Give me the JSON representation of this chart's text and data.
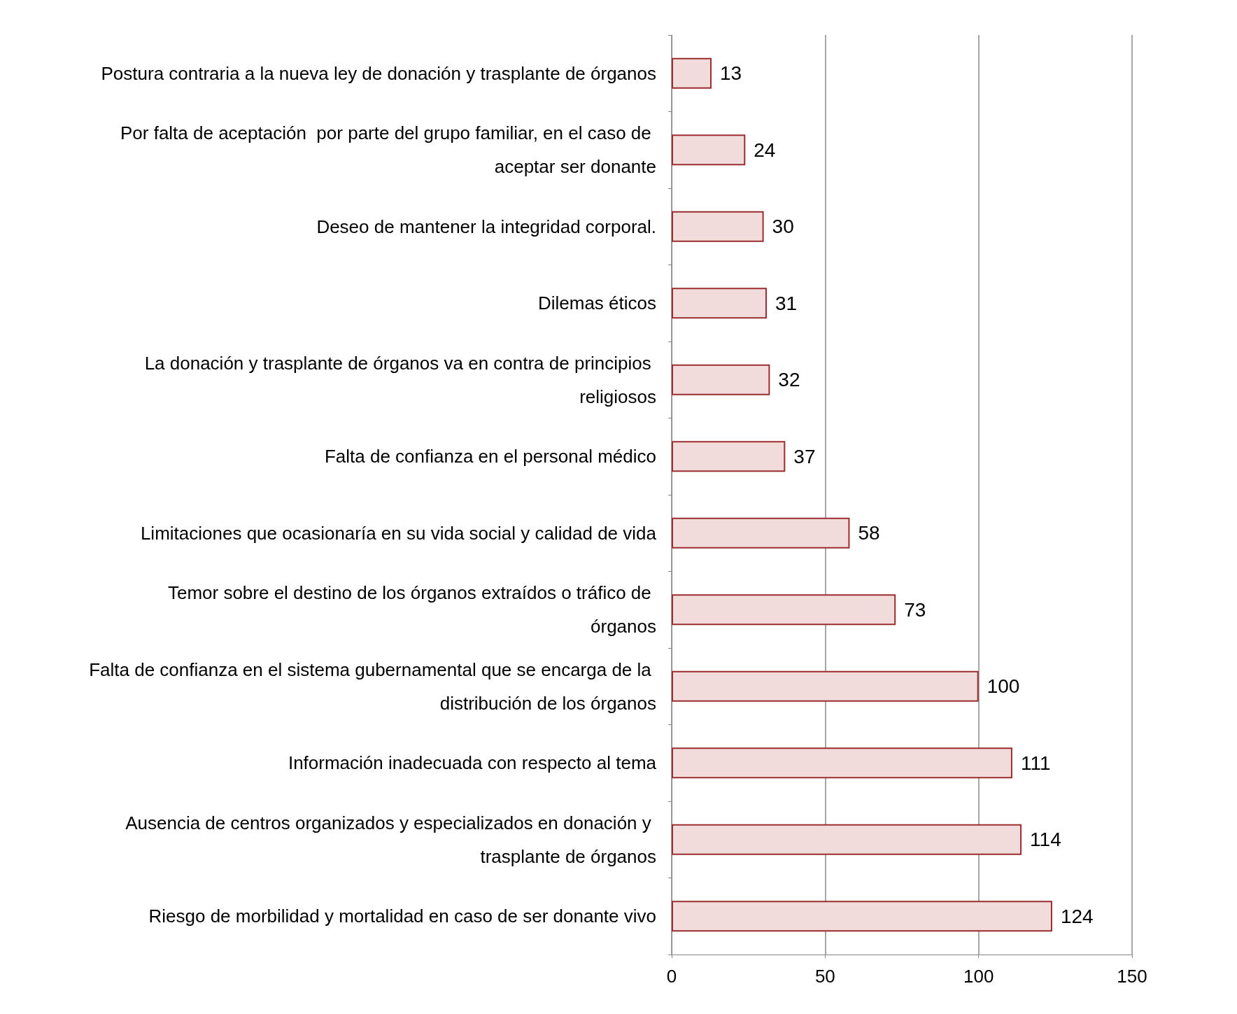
{
  "chart_data": {
    "type": "bar",
    "orientation": "horizontal",
    "categories": [
      "Postura contraria a la nueva ley de donación y trasplante de órganos",
      "Por falta de aceptación  por parte del grupo familiar, en el caso de aceptar ser donante",
      "Deseo de mantener la integridad corporal.",
      "Dilemas éticos",
      "La donación y trasplante de órganos va en contra de principios religiosos",
      "Falta de confianza en el personal médico",
      "Limitaciones que ocasionaría en su vida social y calidad de vida",
      "Temor sobre el destino de los órganos extraídos o tráfico de órganos",
      "Falta de confianza en el sistema gubernamental que se encarga de la distribución de los órganos",
      "Información inadecuada con respecto al tema",
      "Ausencia de centros organizados y especializados en donación y trasplante de órganos",
      "Riesgo de morbilidad y mortalidad en caso de ser donante vivo"
    ],
    "values": [
      13,
      24,
      30,
      31,
      32,
      37,
      58,
      73,
      100,
      111,
      114,
      124
    ],
    "color": "#f2dcdb",
    "xlim": [
      0,
      150
    ],
    "xticks": [
      0,
      50,
      100,
      150
    ],
    "grid": "x",
    "data_labels": true
  }
}
